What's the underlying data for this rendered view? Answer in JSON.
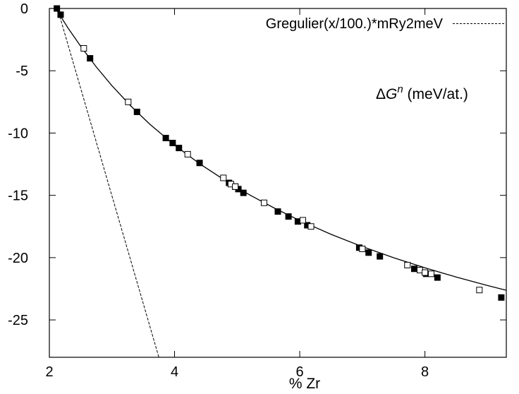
{
  "chart_data": {
    "type": "scatter",
    "title": "",
    "xlabel": "% Zr",
    "ylabel": "",
    "xlim": [
      2,
      9.3
    ],
    "ylim": [
      -28,
      0
    ],
    "xticks": [
      2,
      4,
      6,
      8
    ],
    "yticks": [
      0,
      -5,
      -10,
      -15,
      -20,
      -25
    ],
    "grid": false,
    "legend_position": "top-right",
    "legend_label": "Gregulier(x/100.)*mRy2meV",
    "annotation": {
      "symbol": "Δ",
      "var": "G",
      "sup": "n",
      "unit": " (meV/at.)"
    },
    "series": [
      {
        "style": "filled-square",
        "x": [
          2.12,
          2.18,
          2.65,
          3.4,
          3.86,
          3.97,
          4.07,
          4.4,
          4.87,
          4.97,
          5.02,
          5.1,
          5.65,
          5.82,
          5.97,
          6.12,
          6.95,
          7.1,
          7.28,
          7.83,
          8.02,
          8.2,
          9.22
        ],
        "y": [
          0.0,
          -0.5,
          -4.0,
          -8.3,
          -10.4,
          -10.8,
          -11.2,
          -12.4,
          -14.0,
          -14.3,
          -14.5,
          -14.8,
          -16.3,
          -16.7,
          -17.1,
          -17.4,
          -19.2,
          -19.6,
          -19.9,
          -20.9,
          -21.3,
          -21.6,
          -23.2
        ]
      },
      {
        "style": "open-square",
        "x": [
          2.55,
          3.26,
          4.21,
          4.78,
          4.9,
          4.97,
          5.43,
          6.05,
          6.18,
          7.0,
          7.72,
          7.92,
          8.0,
          8.1,
          8.87
        ],
        "y": [
          -3.2,
          -7.5,
          -11.7,
          -13.6,
          -14.1,
          -14.3,
          -15.6,
          -17.0,
          -17.5,
          -19.3,
          -20.6,
          -21.0,
          -21.2,
          -21.3,
          -22.6
        ]
      },
      {
        "style": "solid-line",
        "x": [
          2.1,
          2.3,
          2.5,
          2.75,
          3.0,
          3.3,
          3.6,
          4.0,
          4.4,
          4.8,
          5.2,
          5.6,
          6.0,
          6.5,
          7.0,
          7.5,
          8.0,
          8.5,
          9.0,
          9.3
        ],
        "y": [
          0.0,
          -1.58,
          -3.03,
          -4.7,
          -6.2,
          -7.82,
          -9.27,
          -10.97,
          -12.46,
          -13.78,
          -14.97,
          -16.04,
          -17.02,
          -18.13,
          -19.12,
          -20.01,
          -20.82,
          -21.56,
          -22.24,
          -22.62
        ]
      },
      {
        "style": "dashed-line",
        "x": [
          2.13,
          3.75
        ],
        "y": [
          0.0,
          -28.0
        ]
      }
    ]
  }
}
